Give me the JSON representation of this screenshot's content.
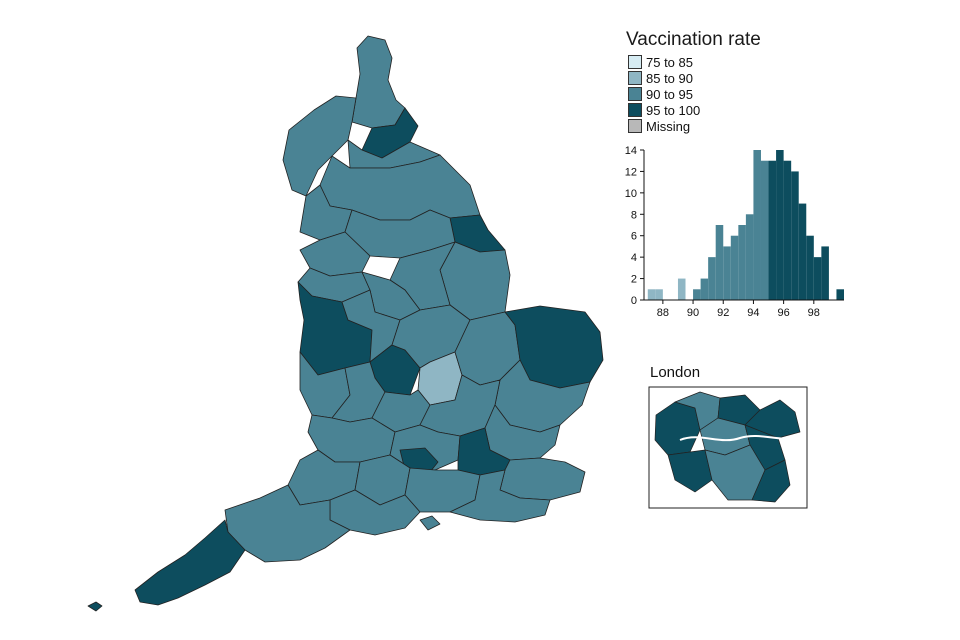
{
  "legend": {
    "title": "Vaccination rate",
    "items": [
      {
        "label": "75 to 85",
        "color": "#d6ecf3"
      },
      {
        "label": "85 to 90",
        "color": "#8fb6c4"
      },
      {
        "label": "90 to 95",
        "color": "#4a8394"
      },
      {
        "label": "95 to 100",
        "color": "#0d4d5e"
      },
      {
        "label": "Missing",
        "color": "#b8b8b8"
      }
    ]
  },
  "inset": {
    "title": "London"
  },
  "chart_data": {
    "type": "bar",
    "x": [
      87,
      87.5,
      88,
      88.5,
      89,
      89.5,
      90,
      90.5,
      91,
      91.5,
      92,
      92.5,
      93,
      93.5,
      94,
      94.5,
      95,
      95.5,
      96,
      96.5,
      97,
      97.5,
      98,
      98.5,
      99,
      99.5
    ],
    "values": [
      1,
      1,
      0,
      0,
      2,
      0,
      1,
      2,
      4,
      7,
      5,
      6,
      7,
      8,
      14,
      13,
      13,
      14,
      13,
      12,
      9,
      6,
      4,
      5,
      0,
      1
    ],
    "bin_width": 0.5,
    "xticks": [
      "88",
      "90",
      "92",
      "94",
      "96",
      "98"
    ],
    "yticks": [
      "0",
      "2",
      "4",
      "6",
      "8",
      "10",
      "12",
      "14"
    ],
    "xlim": [
      86.75,
      100
    ],
    "ylim": [
      0,
      14
    ]
  }
}
